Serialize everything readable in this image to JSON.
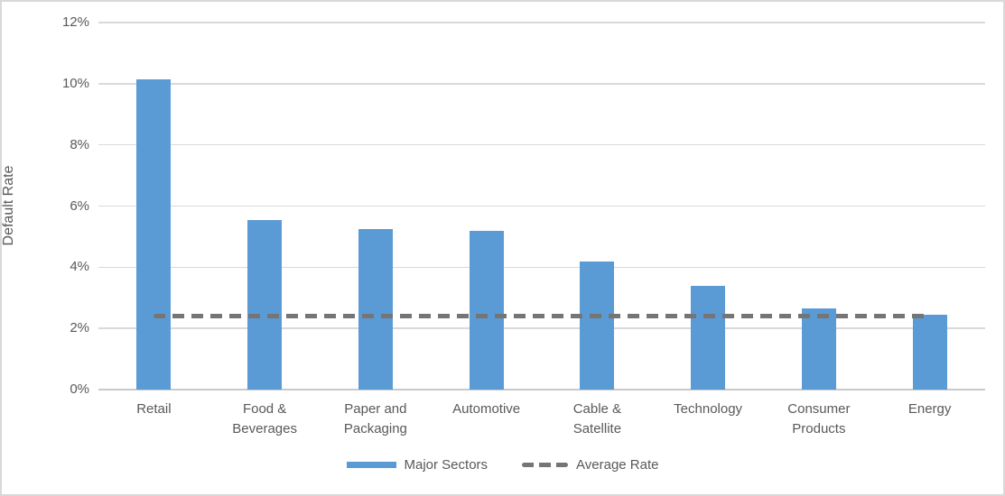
{
  "chart_data": {
    "type": "bar",
    "title": "",
    "ylabel": "Default Rate",
    "xlabel": "",
    "ylim": [
      0,
      12
    ],
    "grid": true,
    "legend_position": "bottom",
    "categories": [
      "Retail",
      "Food & Beverages",
      "Paper and Packaging",
      "Automotive",
      "Cable & Satellite",
      "Technology",
      "Consumer Products",
      "Energy"
    ],
    "series": [
      {
        "name": "Major Sectors",
        "type": "bar",
        "color": "#5b9bd5",
        "values": [
          10.15,
          5.55,
          5.25,
          5.2,
          4.2,
          3.4,
          2.65,
          2.45
        ]
      },
      {
        "name": "Average Rate",
        "type": "dashed-line",
        "color": "#757575",
        "value": 2.4
      }
    ],
    "yticks": [
      {
        "v": 0,
        "label": "0%"
      },
      {
        "v": 2,
        "label": "2%"
      },
      {
        "v": 4,
        "label": "4%"
      },
      {
        "v": 6,
        "label": "6%"
      },
      {
        "v": 8,
        "label": "8%"
      },
      {
        "v": 10,
        "label": "10%"
      },
      {
        "v": 12,
        "label": "12%"
      }
    ]
  },
  "colors": {
    "bar": "#5b9bd5",
    "average_line": "#757575",
    "gridline": "#d9d9d9",
    "axis_line": "#c9c9c9",
    "text": "#595959",
    "border": "#d9d9d9",
    "background": "#ffffff"
  }
}
